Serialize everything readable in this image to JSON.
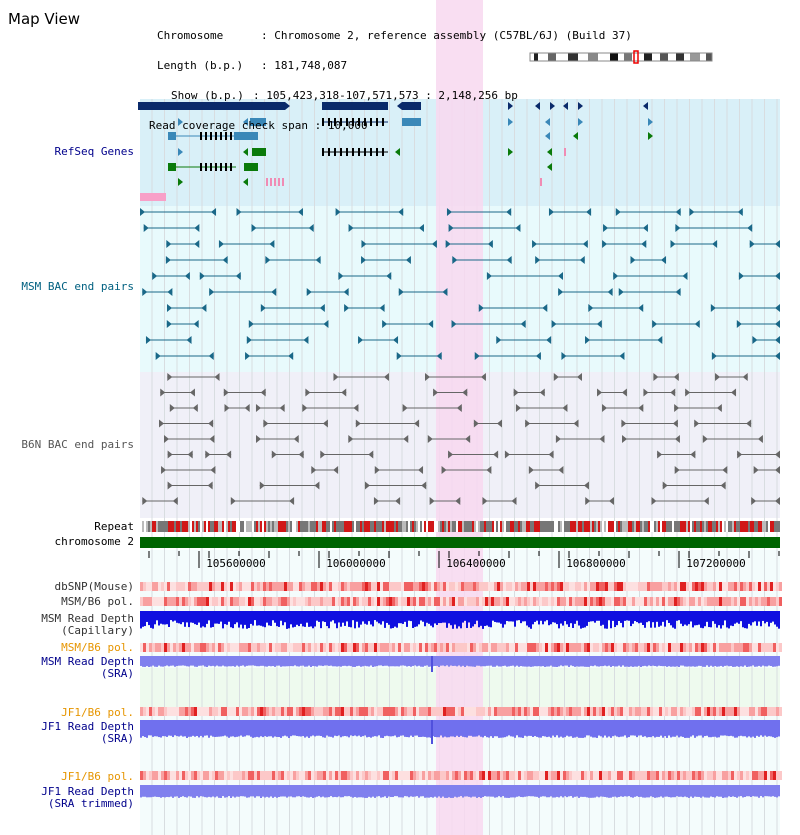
{
  "title": "Map View",
  "info": {
    "chromosome_key": "Chromosome",
    "chromosome_value": "Chromosome 2, reference assembly (C57BL/6J) (Build 37)",
    "length_key": "Length (b.p.)",
    "length_value": "181,748,087",
    "show_key": "Show (b.p.)",
    "show_value": "105,423,318-107,571,573 : 2,148,256 bp",
    "coverage_key": "Read coverage check span",
    "coverage_value": "10,000"
  },
  "tracks": {
    "refseq": {
      "label": "RefSeq Genes",
      "color": "#00008b"
    },
    "msm_bac": {
      "label": "MSM BAC end pairs",
      "color": "#006080"
    },
    "b6n_bac": {
      "label": "B6N BAC end pairs",
      "color": "#555555"
    },
    "repeat": {
      "label": "Repeat"
    },
    "chromosome": {
      "label": "chromosome 2"
    },
    "dbsnp": {
      "label": "dbSNP(Mouse)"
    },
    "msm_b6_pol_1": {
      "label": "MSM/B6 pol."
    },
    "msm_read_depth_cap": {
      "label": "MSM Read Depth\n(Capillary)"
    },
    "msm_b6_pol_2": {
      "label": "MSM/B6 pol.",
      "color": "#e69500"
    },
    "msm_read_depth_sra": {
      "label": "MSM Read Depth\n(SRA)",
      "color": "#00008b"
    },
    "jf1_b6_pol_1": {
      "label": "JF1/B6 pol.",
      "color": "#e69500"
    },
    "jf1_read_depth_sra": {
      "label": "JF1 Read Depth\n(SRA)",
      "color": "#00008b"
    },
    "jf1_b6_pol_2": {
      "label": "JF1/B6 pol.",
      "color": "#e69500"
    },
    "jf1_read_depth_trim": {
      "label": "JF1 Read Depth\n(SRA trimmed)",
      "color": "#00008b"
    }
  },
  "axis": {
    "ticks": [
      "105600000",
      "106000000",
      "106400000",
      "106800000",
      "107200000"
    ]
  },
  "colors": {
    "refseq_bg": "#d9f0f8",
    "msm_bg": "#e8fafc",
    "b6n_bg": "#f0f0f8",
    "highlight": "#f8d8f0",
    "chromosome_bar": "#006400",
    "read_depth_blue": "#1010e0",
    "sra_blue": "#8080ee",
    "pol_red": "#ee3030",
    "light_green_bg": "#eefaee"
  }
}
